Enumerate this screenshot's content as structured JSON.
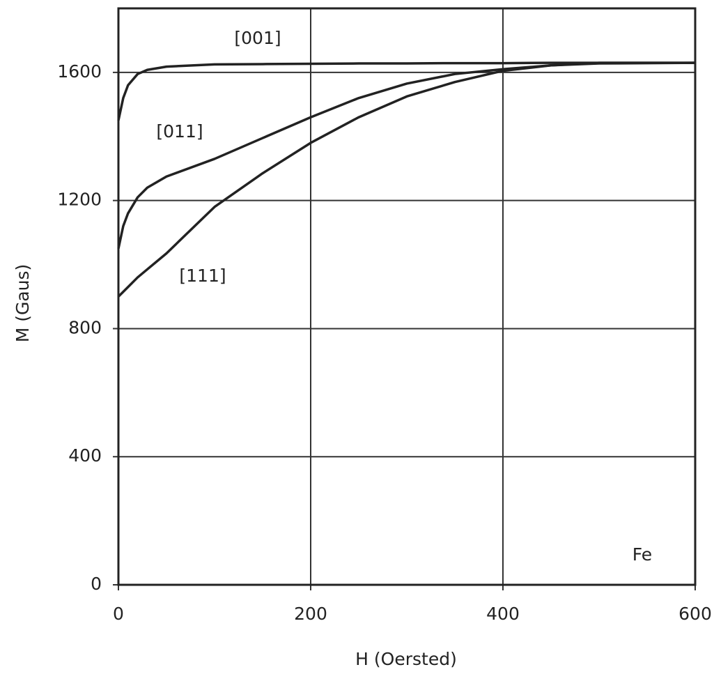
{
  "chart_data": {
    "type": "line",
    "xlabel": "H (Oersted)",
    "ylabel": "M (Gaus)",
    "x": [
      0,
      5,
      10,
      20,
      30,
      50,
      100,
      150,
      200,
      250,
      300,
      350,
      400,
      450,
      500,
      600
    ],
    "series": [
      {
        "name": "[001]",
        "color": "#222222",
        "values": [
          1450,
          1520,
          1560,
          1595,
          1608,
          1618,
          1625,
          1626,
          1627,
          1628,
          1628,
          1629,
          1629,
          1630,
          1630,
          1630
        ]
      },
      {
        "name": "[011]",
        "color": "#222222",
        "values": [
          1050,
          1120,
          1160,
          1210,
          1240,
          1275,
          1330,
          1395,
          1460,
          1520,
          1565,
          1595,
          1610,
          1622,
          1628,
          1630
        ]
      },
      {
        "name": "[111]",
        "color": "#222222",
        "values": [
          900,
          915,
          930,
          960,
          985,
          1035,
          1180,
          1285,
          1380,
          1460,
          1525,
          1570,
          1605,
          1622,
          1630,
          1630
        ]
      }
    ],
    "annotations": [
      "Fe"
    ],
    "xlim": [
      0,
      600
    ],
    "ylim": [
      0,
      1800
    ],
    "xticks": [
      0,
      200,
      400,
      600
    ],
    "yticks": [
      0,
      400,
      800,
      1200,
      1600
    ],
    "grid": true
  }
}
